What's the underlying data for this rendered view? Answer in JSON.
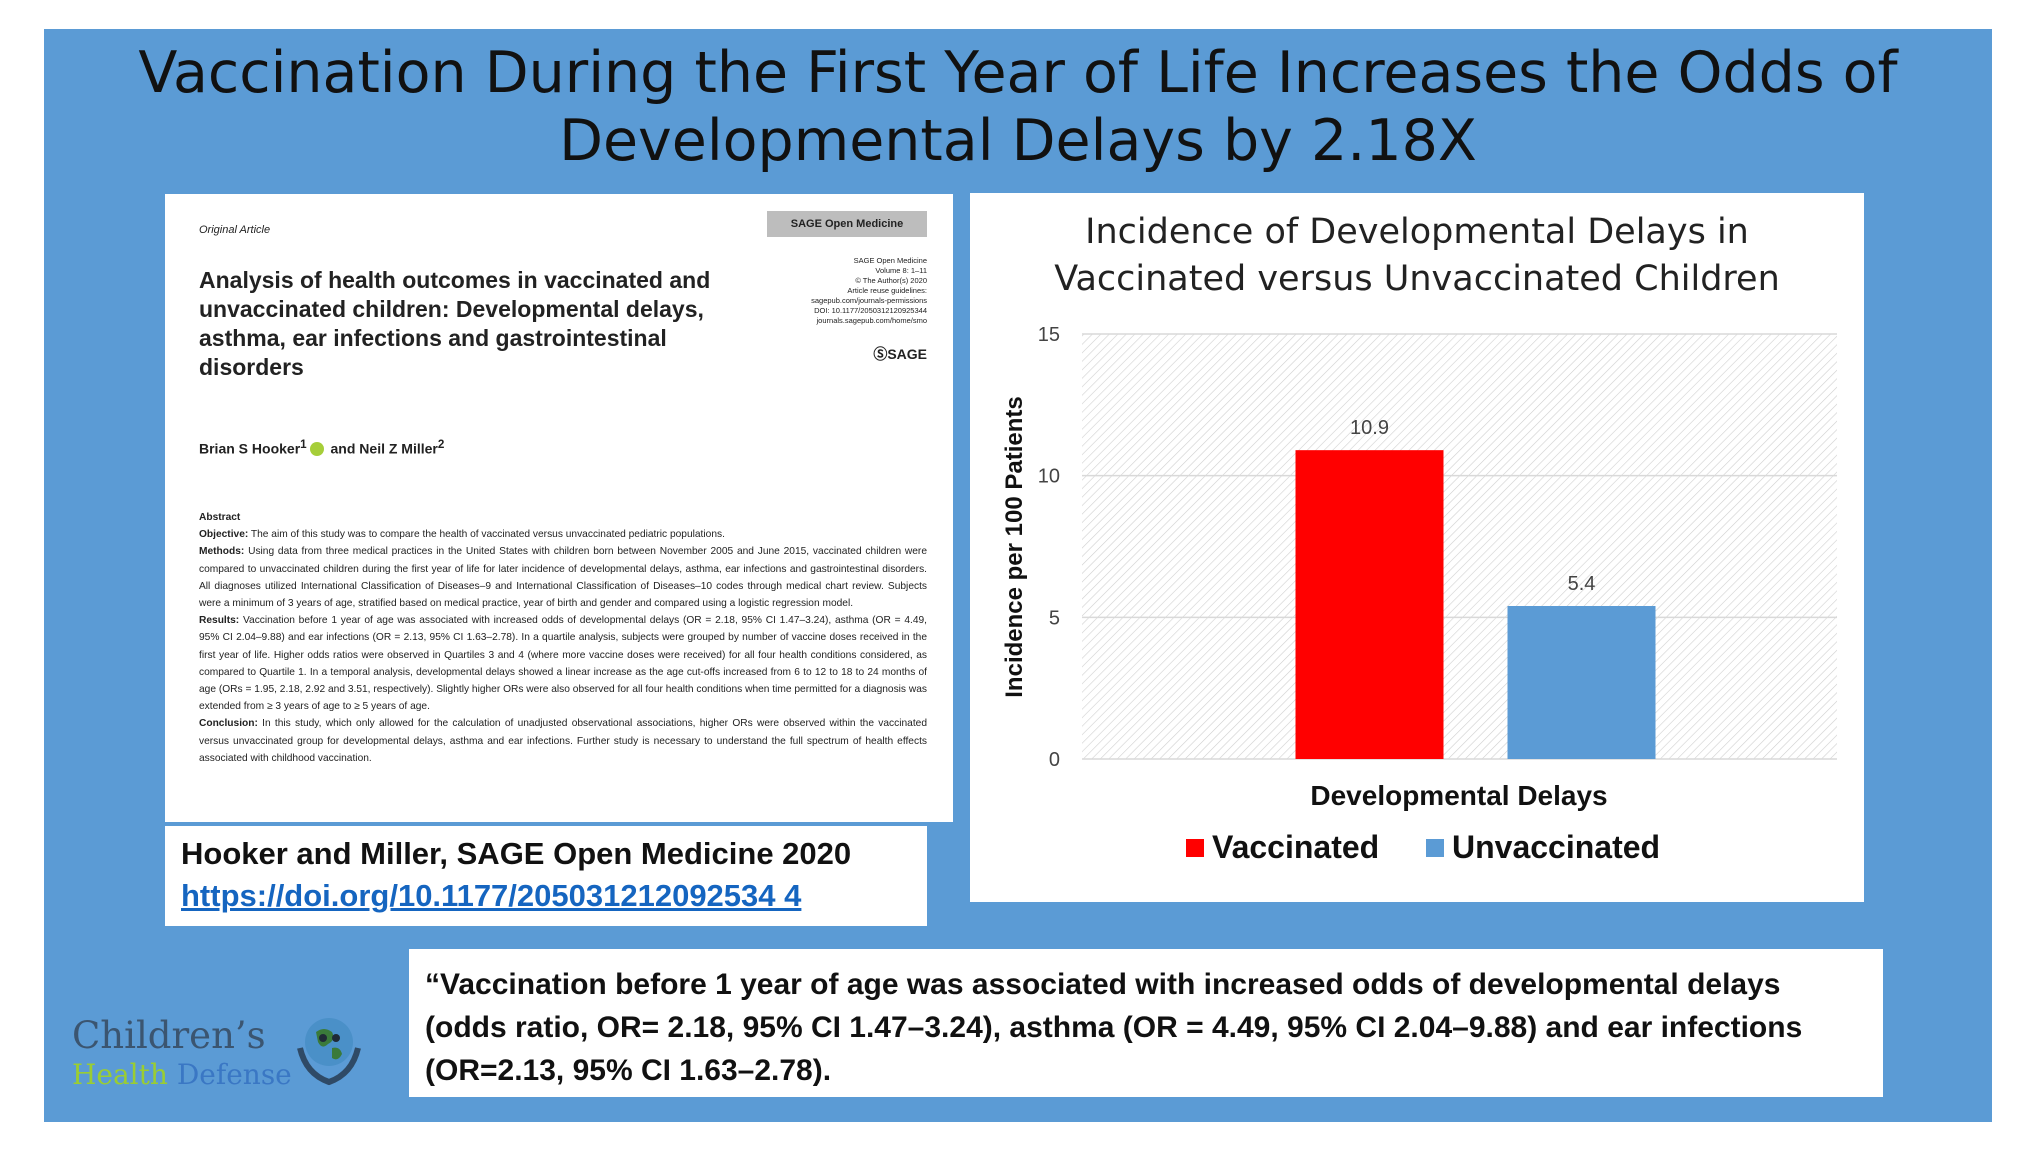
{
  "title": {
    "line1": "Vaccination During the First Year of Life Increases the Odds of",
    "line2": "Developmental Delays by 2.18X"
  },
  "paper": {
    "label": "Original Article",
    "journal": "SAGE Open Medicine",
    "meta": [
      "SAGE Open Medicine",
      "Volume 8: 1–11",
      "© The Author(s) 2020",
      "Article reuse guidelines:",
      "sagepub.com/journals-permissions",
      "DOI: 10.1177/2050312120925344",
      "journals.sagepub.com/home/smo"
    ],
    "publisher": "SAGE",
    "article_title": "Analysis of health outcomes in vaccinated and unvaccinated children: Developmental delays, asthma, ear infections and gastrointestinal disorders",
    "author1": "Brian S Hooker",
    "author1_sup": "1",
    "connector": "and",
    "author2": "Neil Z Miller",
    "author2_sup": "2",
    "abstract_heading": "Abstract",
    "objective_label": "Objective:",
    "objective": "The aim of this study was to compare the health of vaccinated versus unvaccinated pediatric populations.",
    "methods_label": "Methods:",
    "methods": "Using data from three medical practices in the United States with children born between November 2005 and June 2015, vaccinated children were compared to unvaccinated children during the first year of life for later incidence of developmental delays, asthma, ear infections and gastrointestinal disorders. All diagnoses utilized International Classification of Diseases–9 and International Classification of Diseases–10 codes through medical chart review. Subjects were a minimum of 3 years of age, stratified based on medical practice, year of birth and gender and compared using a logistic regression model.",
    "results_label": "Results:",
    "results": "Vaccination before 1 year of age was associated with increased odds of developmental delays (OR = 2.18, 95% CI 1.47–3.24), asthma (OR = 4.49, 95% CI 2.04–9.88) and ear infections (OR = 2.13, 95% CI 1.63–2.78). In a quartile analysis, subjects were grouped by number of vaccine doses received in the first year of life. Higher odds ratios were observed in Quartiles 3 and 4 (where more vaccine doses were received) for all four health conditions considered, as compared to Quartile 1. In a temporal analysis, developmental delays showed a linear increase as the age cut-offs increased from 6 to 12 to 18 to 24 months of age (ORs = 1.95, 2.18, 2.92 and 3.51, respectively). Slightly higher ORs were also observed for all four health conditions when time permitted for a diagnosis was extended from ≥ 3 years of age to ≥ 5 years of age.",
    "conclusion_label": "Conclusion:",
    "conclusion": "In this study, which only allowed for the calculation of unadjusted observational associations, higher ORs were observed within the vaccinated versus unvaccinated group for developmental delays, asthma and ear infections. Further study is necessary to understand the full spectrum of health effects associated with childhood vaccination."
  },
  "citation": {
    "text": "Hooker and Miller, SAGE Open Medicine 2020",
    "link": "https://doi.org/10.1177/205031212092534 4"
  },
  "chart_data": {
    "type": "bar",
    "title": [
      "Incidence of Developmental Delays in",
      "Vaccinated versus Unvaccinated Children"
    ],
    "xlabel": "Developmental Delays",
    "ylabel": "Incidence per 100 Patients",
    "ylim": [
      0,
      15
    ],
    "yticks": [
      0,
      5,
      10,
      15
    ],
    "grid": true,
    "legend_position": "bottom",
    "series": [
      {
        "name": "Vaccinated",
        "value": 10.9,
        "label": "10.9",
        "color": "#ff0000"
      },
      {
        "name": "Unvaccinated",
        "value": 5.4,
        "label": "5.4",
        "color": "#5b9bd5"
      }
    ]
  },
  "quote": {
    "text": "“Vaccination before 1 year of age was associated with increased odds of developmental delays (odds ratio, OR= 2.18, 95% CI 1.47–3.24), asthma (OR = 4.49, 95% CI 2.04–9.88) and ear infections (OR=2.13, 95% CI 1.63–2.78)."
  },
  "logo": {
    "line1": "Children’s",
    "word_health": "Health",
    "word_defense": "Defense"
  },
  "colors": {
    "slide_background": "#5b9bd5",
    "vaccinated": "#ff0000",
    "unvaccinated": "#5b9bd5",
    "link": "#1565c0"
  }
}
